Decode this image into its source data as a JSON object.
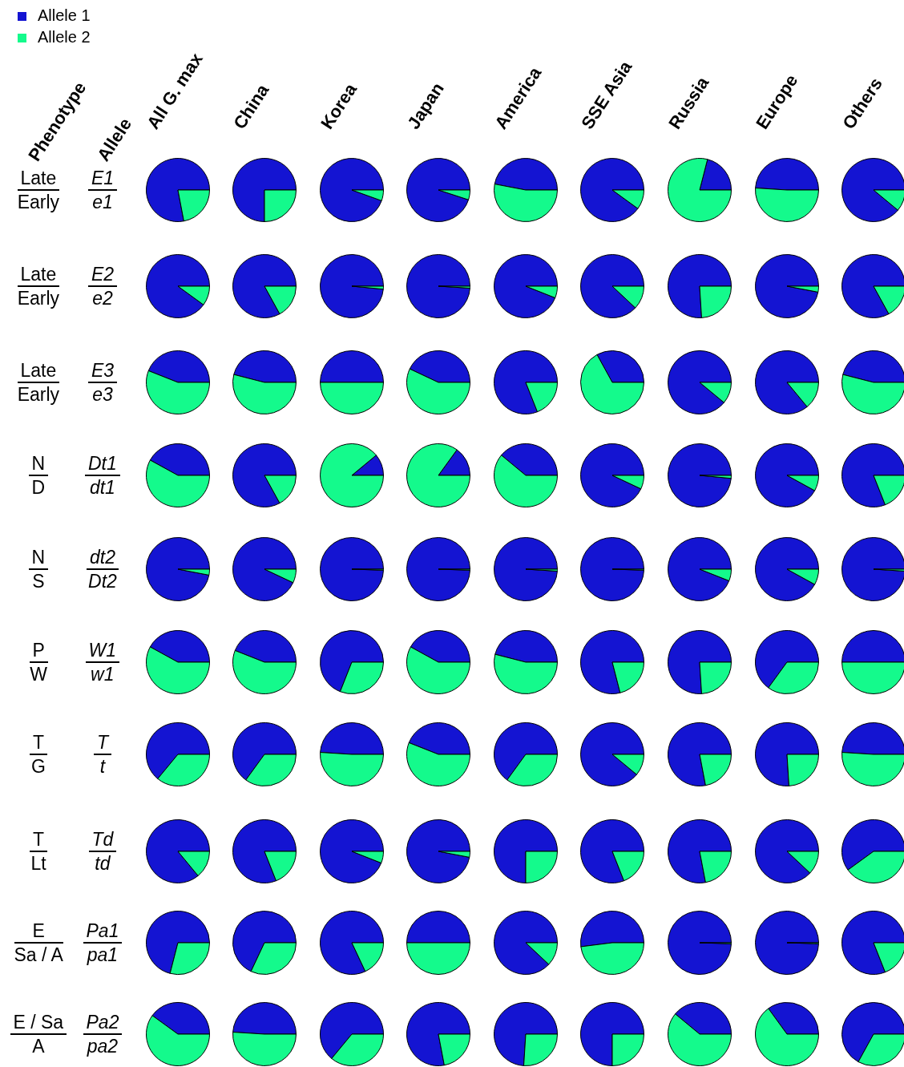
{
  "chart_data": {
    "type": "pie",
    "legend": "top left",
    "categories": [
      "Allele 1",
      "Allele 2"
    ],
    "colors": [
      "#1414d2",
      "#14fa8c"
    ],
    "annotations": [
      "Phenotype",
      "Allele",
      "Late",
      "Early",
      "E1",
      "e1",
      "Late",
      "Early",
      "E2",
      "e2",
      "Late",
      "Early",
      "E3",
      "e3",
      "N",
      "D",
      "Dt1",
      "dt1",
      "N",
      "S",
      "dt2",
      "Dt2",
      "P",
      "W",
      "W1",
      "w1",
      "T",
      "G",
      "T",
      "t",
      "T",
      "Lt",
      "Td",
      "td",
      "E",
      "Sa / A",
      "Pa1",
      "pa1",
      "E / Sa",
      "A",
      "Pa2",
      "pa2"
    ],
    "series": [
      {
        "name": "All G. max",
        "values": [
          78,
          22
        ]
      },
      {
        "name": "China",
        "values": [
          75,
          25
        ]
      },
      {
        "name": "Korea",
        "values": [
          94.5,
          5.5
        ]
      },
      {
        "name": "Japan",
        "values": [
          95,
          5
        ]
      },
      {
        "name": "America",
        "values": [
          47,
          53
        ]
      },
      {
        "name": "SSE Asia",
        "values": [
          90,
          10
        ]
      },
      {
        "name": "Russia",
        "values": [
          21,
          79
        ]
      },
      {
        "name": "Europe",
        "values": [
          49,
          51
        ]
      },
      {
        "name": "Others",
        "values": [
          89,
          11
        ]
      },
      {
        "values": [
          90,
          10
        ]
      },
      {
        "values": [
          83,
          17
        ]
      },
      {
        "values": [
          98.5,
          1.5
        ]
      },
      {
        "values": [
          99,
          1
        ]
      },
      {
        "values": [
          94,
          6
        ]
      },
      {
        "values": [
          88,
          12
        ]
      },
      {
        "values": [
          76,
          24
        ]
      },
      {
        "values": [
          97,
          3
        ]
      },
      {
        "values": [
          83,
          17
        ]
      },
      {
        "values": [
          44,
          56
        ]
      },
      {
        "values": [
          46,
          54
        ]
      },
      {
        "values": [
          50,
          50
        ]
      },
      {
        "values": [
          43,
          57
        ]
      },
      {
        "values": [
          81,
          19
        ]
      },
      {
        "values": [
          33,
          67
        ]
      },
      {
        "values": [
          89,
          11
        ]
      },
      {
        "values": [
          86,
          14
        ]
      },
      {
        "values": [
          46,
          54
        ]
      },
      {
        "values": [
          42,
          58
        ]
      },
      {
        "values": [
          83,
          17
        ]
      },
      {
        "values": [
          11,
          89
        ]
      },
      {
        "values": [
          15,
          85
        ]
      },
      {
        "values": [
          39,
          61
        ]
      },
      {
        "values": [
          93,
          7
        ]
      },
      {
        "values": [
          98.5,
          1.5
        ]
      },
      {
        "values": [
          92,
          8
        ]
      },
      {
        "values": [
          81,
          19
        ]
      },
      {
        "values": [
          97,
          3
        ]
      },
      {
        "values": [
          93,
          7
        ]
      },
      {
        "values": [
          99.5,
          0.5
        ]
      },
      {
        "values": [
          99.5,
          0.5
        ]
      },
      {
        "values": [
          99,
          1
        ]
      },
      {
        "values": [
          99.5,
          0.5
        ]
      },
      {
        "values": [
          94,
          6
        ]
      },
      {
        "values": [
          92,
          8
        ]
      },
      {
        "values": [
          99,
          1
        ]
      },
      {
        "values": [
          42,
          58
        ]
      },
      {
        "values": [
          44,
          56
        ]
      },
      {
        "values": [
          69,
          31
        ]
      },
      {
        "values": [
          42,
          58
        ]
      },
      {
        "values": [
          46,
          54
        ]
      },
      {
        "values": [
          79,
          21
        ]
      },
      {
        "values": [
          76,
          24
        ]
      },
      {
        "values": [
          65,
          35
        ]
      },
      {
        "values": [
          50,
          50
        ]
      },
      {
        "values": [
          64,
          36
        ]
      },
      {
        "values": [
          65,
          35
        ]
      },
      {
        "values": [
          49,
          51
        ]
      },
      {
        "values": [
          44,
          56
        ]
      },
      {
        "values": [
          65,
          35
        ]
      },
      {
        "values": [
          89,
          11
        ]
      },
      {
        "values": [
          78,
          22
        ]
      },
      {
        "values": [
          76,
          24
        ]
      },
      {
        "values": [
          49,
          51
        ]
      },
      {
        "values": [
          86,
          14
        ]
      },
      {
        "values": [
          81,
          19
        ]
      },
      {
        "values": [
          94,
          6
        ]
      },
      {
        "values": [
          97,
          3
        ]
      },
      {
        "values": [
          75,
          25
        ]
      },
      {
        "values": [
          81,
          19
        ]
      },
      {
        "values": [
          78,
          22
        ]
      },
      {
        "values": [
          88,
          12
        ]
      },
      {
        "values": [
          60,
          40
        ]
      },
      {
        "values": [
          71,
          29
        ]
      },
      {
        "values": [
          68,
          32
        ]
      },
      {
        "values": [
          82,
          18
        ]
      },
      {
        "values": [
          50,
          50
        ]
      },
      {
        "values": [
          88,
          12
        ]
      },
      {
        "values": [
          52,
          48
        ]
      },
      {
        "values": [
          99.5,
          0.5
        ]
      },
      {
        "values": [
          99.5,
          0.5
        ]
      },
      {
        "values": [
          81,
          19
        ]
      },
      {
        "values": [
          40,
          60
        ]
      },
      {
        "values": [
          49,
          51
        ]
      },
      {
        "values": [
          64,
          36
        ]
      },
      {
        "values": [
          78,
          22
        ]
      },
      {
        "values": [
          74,
          26
        ]
      },
      {
        "values": [
          75,
          25
        ]
      },
      {
        "values": [
          39,
          61
        ]
      },
      {
        "values": [
          35,
          65
        ]
      },
      {
        "values": [
          67,
          33
        ]
      }
    ]
  }
}
